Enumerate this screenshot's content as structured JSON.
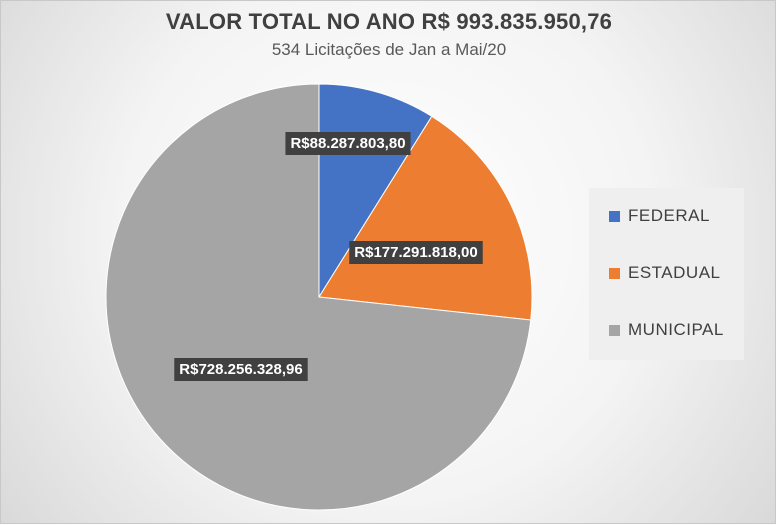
{
  "chart_data": {
    "type": "pie",
    "title": "VALOR TOTAL NO ANO R$ 993.835.950,76",
    "subtitle": "534 Licitações de Jan a Mai/20",
    "categories": [
      "FEDERAL",
      "ESTADUAL",
      "MUNICIPAL"
    ],
    "values": [
      88287803.8,
      177291818.0,
      728256328.96
    ],
    "data_labels": [
      "R$88.287.803,80",
      "R$177.291.818,00",
      "R$728.256.328,96"
    ],
    "colors": [
      "#4472C4",
      "#ED7D31",
      "#A5A5A5"
    ],
    "start_angle": "12 o'clock",
    "direction": "clockwise",
    "legend_position": "right"
  }
}
